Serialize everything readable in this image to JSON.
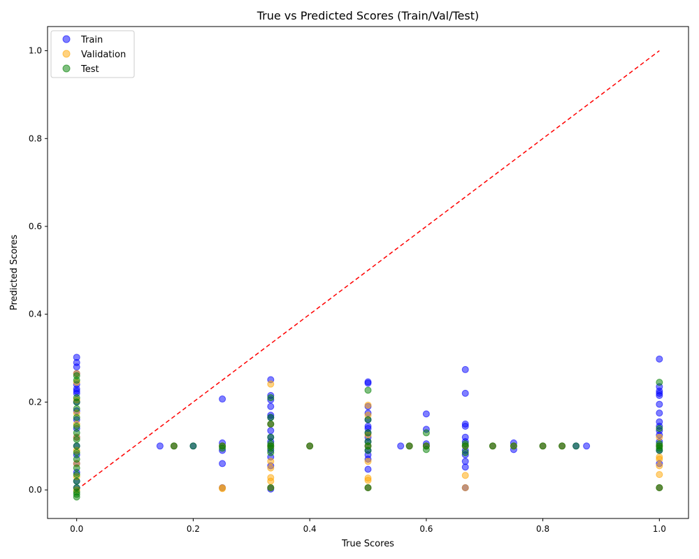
{
  "chart_data": {
    "type": "scatter",
    "title": "True vs Predicted Scores (Train/Val/Test)",
    "xlabel": "True Scores",
    "ylabel": "Predicted Scores",
    "xlim": [
      -0.05,
      1.05
    ],
    "ylim": [
      -0.065,
      1.055
    ],
    "xticks": [
      0.0,
      0.2,
      0.4,
      0.6,
      0.8,
      1.0
    ],
    "yticks": [
      0.0,
      0.2,
      0.4,
      0.6,
      0.8,
      1.0
    ],
    "xtick_labels": [
      "0.0",
      "0.2",
      "0.4",
      "0.6",
      "0.8",
      "1.0"
    ],
    "ytick_labels": [
      "0.0",
      "0.2",
      "0.4",
      "0.6",
      "0.8",
      "1.0"
    ],
    "grid": false,
    "legend_position": "upper-left",
    "reference_line": {
      "x": [
        0,
        1
      ],
      "y": [
        0,
        1
      ],
      "color": "#ff0000",
      "style": "dashed"
    },
    "series": [
      {
        "name": "Train",
        "color": "#0000ff",
        "points": [
          [
            0.0,
            0.302
          ],
          [
            0.0,
            0.29
          ],
          [
            0.0,
            0.28
          ],
          [
            0.0,
            0.265
          ],
          [
            0.0,
            0.24
          ],
          [
            0.0,
            0.23
          ],
          [
            0.0,
            0.225
          ],
          [
            0.0,
            0.22
          ],
          [
            0.0,
            0.2
          ],
          [
            0.0,
            0.18
          ],
          [
            0.0,
            0.16
          ],
          [
            0.0,
            0.14
          ],
          [
            0.0,
            0.12
          ],
          [
            0.0,
            0.1
          ],
          [
            0.0,
            0.08
          ],
          [
            0.0,
            0.06
          ],
          [
            0.0,
            0.04
          ],
          [
            0.0,
            0.02
          ],
          [
            0.0,
            0.005
          ],
          [
            0.143,
            0.1
          ],
          [
            0.167,
            0.1
          ],
          [
            0.2,
            0.1
          ],
          [
            0.25,
            0.207
          ],
          [
            0.25,
            0.107
          ],
          [
            0.25,
            0.1
          ],
          [
            0.25,
            0.09
          ],
          [
            0.25,
            0.06
          ],
          [
            0.25,
            0.005
          ],
          [
            0.333,
            0.251
          ],
          [
            0.333,
            0.215
          ],
          [
            0.333,
            0.205
          ],
          [
            0.333,
            0.19
          ],
          [
            0.333,
            0.17
          ],
          [
            0.333,
            0.165
          ],
          [
            0.333,
            0.15
          ],
          [
            0.333,
            0.135
          ],
          [
            0.333,
            0.12
          ],
          [
            0.333,
            0.11
          ],
          [
            0.333,
            0.1
          ],
          [
            0.333,
            0.09
          ],
          [
            0.333,
            0.075
          ],
          [
            0.333,
            0.055
          ],
          [
            0.333,
            0.005
          ],
          [
            0.333,
            0.002
          ],
          [
            0.4,
            0.1
          ],
          [
            0.5,
            0.246
          ],
          [
            0.5,
            0.243
          ],
          [
            0.5,
            0.19
          ],
          [
            0.5,
            0.175
          ],
          [
            0.5,
            0.16
          ],
          [
            0.5,
            0.145
          ],
          [
            0.5,
            0.14
          ],
          [
            0.5,
            0.13
          ],
          [
            0.5,
            0.12
          ],
          [
            0.5,
            0.11
          ],
          [
            0.5,
            0.1
          ],
          [
            0.5,
            0.09
          ],
          [
            0.5,
            0.08
          ],
          [
            0.5,
            0.07
          ],
          [
            0.5,
            0.047
          ],
          [
            0.5,
            0.005
          ],
          [
            0.556,
            0.1
          ],
          [
            0.571,
            0.1
          ],
          [
            0.6,
            0.173
          ],
          [
            0.6,
            0.138
          ],
          [
            0.6,
            0.105
          ],
          [
            0.6,
            0.1
          ],
          [
            0.667,
            0.274
          ],
          [
            0.667,
            0.22
          ],
          [
            0.667,
            0.15
          ],
          [
            0.667,
            0.145
          ],
          [
            0.667,
            0.12
          ],
          [
            0.667,
            0.11
          ],
          [
            0.667,
            0.1
          ],
          [
            0.667,
            0.09
          ],
          [
            0.667,
            0.08
          ],
          [
            0.667,
            0.065
          ],
          [
            0.667,
            0.052
          ],
          [
            0.667,
            0.005
          ],
          [
            0.714,
            0.1
          ],
          [
            0.75,
            0.107
          ],
          [
            0.75,
            0.1
          ],
          [
            0.75,
            0.092
          ],
          [
            0.8,
            0.1
          ],
          [
            0.833,
            0.1
          ],
          [
            0.857,
            0.1
          ],
          [
            0.875,
            0.1
          ],
          [
            1.0,
            0.298
          ],
          [
            1.0,
            0.235
          ],
          [
            1.0,
            0.225
          ],
          [
            1.0,
            0.22
          ],
          [
            1.0,
            0.215
          ],
          [
            1.0,
            0.195
          ],
          [
            1.0,
            0.175
          ],
          [
            1.0,
            0.155
          ],
          [
            1.0,
            0.145
          ],
          [
            1.0,
            0.135
          ],
          [
            1.0,
            0.125
          ],
          [
            1.0,
            0.11
          ],
          [
            1.0,
            0.1
          ],
          [
            1.0,
            0.09
          ],
          [
            1.0,
            0.06
          ],
          [
            1.0,
            0.005
          ]
        ]
      },
      {
        "name": "Validation",
        "color": "#ffa500",
        "points": [
          [
            0.0,
            0.265
          ],
          [
            0.0,
            0.245
          ],
          [
            0.0,
            0.205
          ],
          [
            0.0,
            0.175
          ],
          [
            0.0,
            0.15
          ],
          [
            0.0,
            0.12
          ],
          [
            0.0,
            0.09
          ],
          [
            0.0,
            0.06
          ],
          [
            0.0,
            0.03
          ],
          [
            0.0,
            0.0
          ],
          [
            0.167,
            0.1
          ],
          [
            0.25,
            0.1
          ],
          [
            0.25,
            0.005
          ],
          [
            0.25,
            0.003
          ],
          [
            0.333,
            0.241
          ],
          [
            0.333,
            0.15
          ],
          [
            0.333,
            0.1
          ],
          [
            0.333,
            0.065
          ],
          [
            0.333,
            0.05
          ],
          [
            0.333,
            0.028
          ],
          [
            0.333,
            0.02
          ],
          [
            0.333,
            0.005
          ],
          [
            0.4,
            0.1
          ],
          [
            0.5,
            0.193
          ],
          [
            0.5,
            0.17
          ],
          [
            0.5,
            0.125
          ],
          [
            0.5,
            0.1
          ],
          [
            0.5,
            0.065
          ],
          [
            0.5,
            0.027
          ],
          [
            0.5,
            0.022
          ],
          [
            0.5,
            0.005
          ],
          [
            0.571,
            0.1
          ],
          [
            0.6,
            0.1
          ],
          [
            0.667,
            0.1
          ],
          [
            0.667,
            0.033
          ],
          [
            0.667,
            0.005
          ],
          [
            0.714,
            0.1
          ],
          [
            0.75,
            0.1
          ],
          [
            0.8,
            0.1
          ],
          [
            0.833,
            0.1
          ],
          [
            1.0,
            0.12
          ],
          [
            1.0,
            0.1
          ],
          [
            1.0,
            0.075
          ],
          [
            1.0,
            0.07
          ],
          [
            1.0,
            0.055
          ],
          [
            1.0,
            0.035
          ],
          [
            1.0,
            0.005
          ]
        ]
      },
      {
        "name": "Test",
        "color": "#008000",
        "points": [
          [
            0.0,
            0.26
          ],
          [
            0.0,
            0.25
          ],
          [
            0.0,
            0.21
          ],
          [
            0.0,
            0.2
          ],
          [
            0.0,
            0.185
          ],
          [
            0.0,
            0.165
          ],
          [
            0.0,
            0.145
          ],
          [
            0.0,
            0.13
          ],
          [
            0.0,
            0.115
          ],
          [
            0.0,
            0.1
          ],
          [
            0.0,
            0.085
          ],
          [
            0.0,
            0.07
          ],
          [
            0.0,
            0.05
          ],
          [
            0.0,
            0.035
          ],
          [
            0.0,
            0.02
          ],
          [
            0.0,
            0.005
          ],
          [
            0.0,
            -0.005
          ],
          [
            0.0,
            -0.01
          ],
          [
            0.0,
            -0.016
          ],
          [
            0.167,
            0.1
          ],
          [
            0.2,
            0.1
          ],
          [
            0.25,
            0.1
          ],
          [
            0.25,
            0.095
          ],
          [
            0.333,
            0.21
          ],
          [
            0.333,
            0.165
          ],
          [
            0.333,
            0.15
          ],
          [
            0.333,
            0.12
          ],
          [
            0.333,
            0.105
          ],
          [
            0.333,
            0.1
          ],
          [
            0.333,
            0.095
          ],
          [
            0.333,
            0.085
          ],
          [
            0.333,
            0.005
          ],
          [
            0.4,
            0.1
          ],
          [
            0.5,
            0.227
          ],
          [
            0.5,
            0.16
          ],
          [
            0.5,
            0.13
          ],
          [
            0.5,
            0.11
          ],
          [
            0.5,
            0.1
          ],
          [
            0.5,
            0.09
          ],
          [
            0.5,
            0.005
          ],
          [
            0.571,
            0.1
          ],
          [
            0.6,
            0.13
          ],
          [
            0.6,
            0.1
          ],
          [
            0.6,
            0.092
          ],
          [
            0.667,
            0.105
          ],
          [
            0.667,
            0.1
          ],
          [
            0.667,
            0.085
          ],
          [
            0.714,
            0.1
          ],
          [
            0.75,
            0.1
          ],
          [
            0.8,
            0.1
          ],
          [
            0.833,
            0.1
          ],
          [
            0.857,
            0.1
          ],
          [
            1.0,
            0.245
          ],
          [
            1.0,
            0.14
          ],
          [
            1.0,
            0.105
          ],
          [
            1.0,
            0.1
          ],
          [
            1.0,
            0.095
          ],
          [
            1.0,
            0.09
          ],
          [
            1.0,
            0.005
          ]
        ]
      }
    ]
  }
}
